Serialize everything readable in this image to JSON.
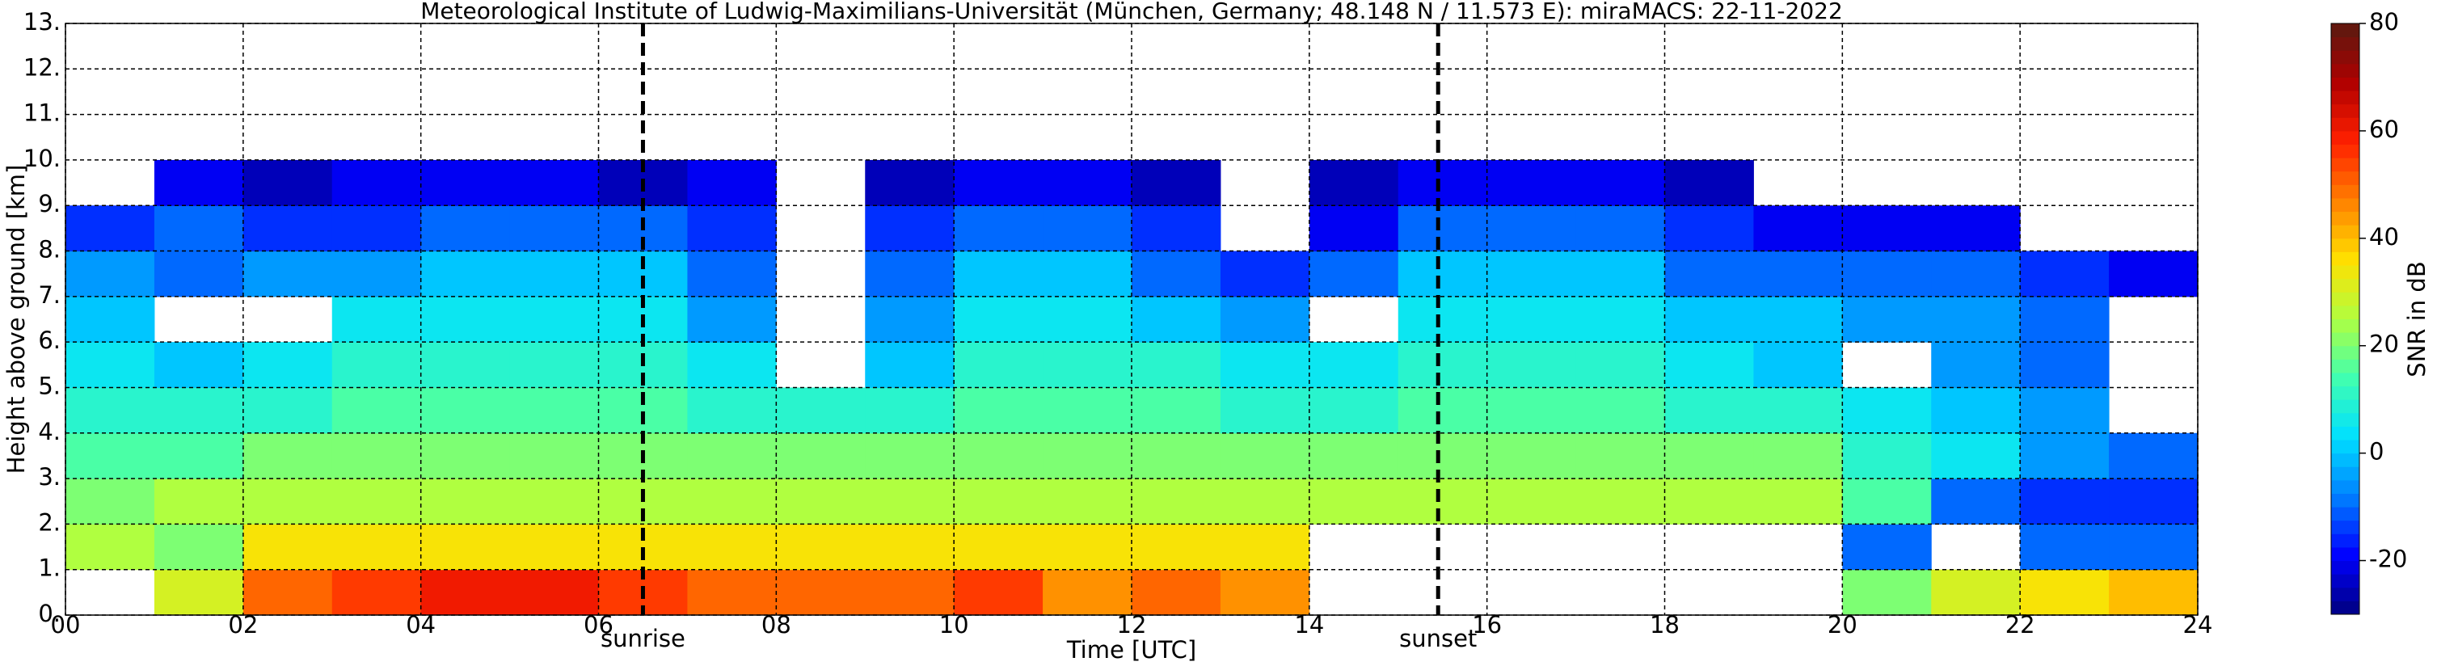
{
  "chart_data": {
    "type": "heatmap",
    "title": "Meteorological Institute of Ludwig-Maximilians-Universität (München, Germany; 48.148 N / 11.573 E):    miraMACS: 22-11-2022",
    "xlabel": "Time [UTC]",
    "ylabel": "Height above ground [km]",
    "xlim": [
      0,
      24
    ],
    "ylim": [
      0,
      13
    ],
    "xticks": [
      {
        "value": 0,
        "label": "00"
      },
      {
        "value": 2,
        "label": "02"
      },
      {
        "value": 4,
        "label": "04"
      },
      {
        "value": 6,
        "label": "06"
      },
      {
        "value": 8,
        "label": "08"
      },
      10,
      12,
      14,
      16,
      18,
      20,
      22,
      24
    ],
    "yticks": [
      {
        "value": 0,
        "label": "0."
      },
      {
        "value": 1,
        "label": "1."
      },
      {
        "value": 2,
        "label": "2."
      },
      {
        "value": 3,
        "label": "3."
      },
      {
        "value": 4,
        "label": "4."
      },
      {
        "value": 5,
        "label": "5."
      },
      {
        "value": 6,
        "label": "6."
      },
      {
        "value": 7,
        "label": "7."
      },
      {
        "value": 8,
        "label": "8."
      },
      {
        "value": 9,
        "label": "9."
      },
      {
        "value": 10,
        "label": "10."
      },
      {
        "value": 11,
        "label": "11."
      },
      {
        "value": 12,
        "label": "12."
      },
      {
        "value": 13,
        "label": "13."
      }
    ],
    "grid": true,
    "xbins": [
      0,
      1,
      2,
      3,
      4,
      5,
      6,
      7,
      8,
      9,
      10,
      11,
      12,
      13,
      14,
      15,
      16,
      17,
      18,
      19,
      20,
      21,
      22,
      23,
      24
    ],
    "ybins": [
      0,
      1,
      2,
      3,
      4,
      5,
      6,
      7,
      8,
      9,
      10
    ],
    "z": [
      [
        null,
        30,
        50,
        55,
        60,
        60,
        55,
        50,
        50,
        50,
        55,
        45,
        50,
        45,
        null,
        null,
        null,
        null,
        null,
        null,
        20,
        30,
        35,
        40
      ],
      [
        25,
        20,
        35,
        35,
        35,
        35,
        35,
        35,
        35,
        35,
        35,
        35,
        35,
        35,
        null,
        null,
        null,
        null,
        null,
        null,
        -10,
        null,
        -10,
        -10
      ],
      [
        20,
        25,
        25,
        25,
        25,
        25,
        25,
        25,
        25,
        25,
        25,
        25,
        25,
        25,
        25,
        25,
        25,
        25,
        25,
        25,
        15,
        -10,
        -15,
        -15
      ],
      [
        15,
        15,
        20,
        20,
        20,
        20,
        20,
        20,
        20,
        20,
        20,
        20,
        20,
        20,
        20,
        20,
        20,
        20,
        20,
        20,
        10,
        5,
        -5,
        -10
      ],
      [
        10,
        10,
        10,
        15,
        15,
        15,
        15,
        10,
        10,
        10,
        15,
        15,
        15,
        10,
        10,
        15,
        15,
        15,
        10,
        10,
        5,
        0,
        -5,
        null
      ],
      [
        5,
        0,
        5,
        10,
        10,
        10,
        10,
        5,
        null,
        0,
        10,
        10,
        10,
        5,
        5,
        10,
        10,
        10,
        5,
        0,
        null,
        -5,
        -10,
        null
      ],
      [
        0,
        null,
        null,
        5,
        5,
        5,
        5,
        -5,
        null,
        -5,
        5,
        5,
        0,
        -5,
        null,
        5,
        5,
        5,
        0,
        0,
        -5,
        -5,
        -10,
        null
      ],
      [
        -5,
        -10,
        -5,
        -5,
        0,
        0,
        0,
        -10,
        null,
        -10,
        0,
        0,
        -10,
        -15,
        -10,
        0,
        0,
        0,
        -10,
        -10,
        -10,
        -10,
        -15,
        -20
      ],
      [
        -15,
        -10,
        -15,
        -15,
        -10,
        -10,
        -10,
        -15,
        null,
        -15,
        -10,
        -10,
        -15,
        null,
        -20,
        -10,
        -10,
        -10,
        -15,
        -20,
        -20,
        -20,
        null,
        null
      ],
      [
        null,
        -20,
        -25,
        -20,
        -20,
        -20,
        -25,
        -20,
        null,
        -25,
        -20,
        -20,
        -25,
        null,
        -25,
        -20,
        -20,
        -20,
        -25,
        null,
        null,
        null,
        null,
        null
      ]
    ],
    "colormap": [
      "#00007f",
      "#0000ff",
      "#0080ff",
      "#00e0ff",
      "#40ffb0",
      "#b0ff40",
      "#ffe000",
      "#ff8000",
      "#ff2000",
      "#b00000",
      "#5a1a10"
    ],
    "zlim": [
      -30,
      80
    ],
    "zticks": [
      -20,
      0,
      20,
      40,
      60,
      80
    ],
    "zlabel": "SNR in dB",
    "annotations": [
      {
        "text": "sunrise",
        "x": 6.5
      },
      {
        "text": "sunset",
        "x": 15.45
      }
    ]
  }
}
